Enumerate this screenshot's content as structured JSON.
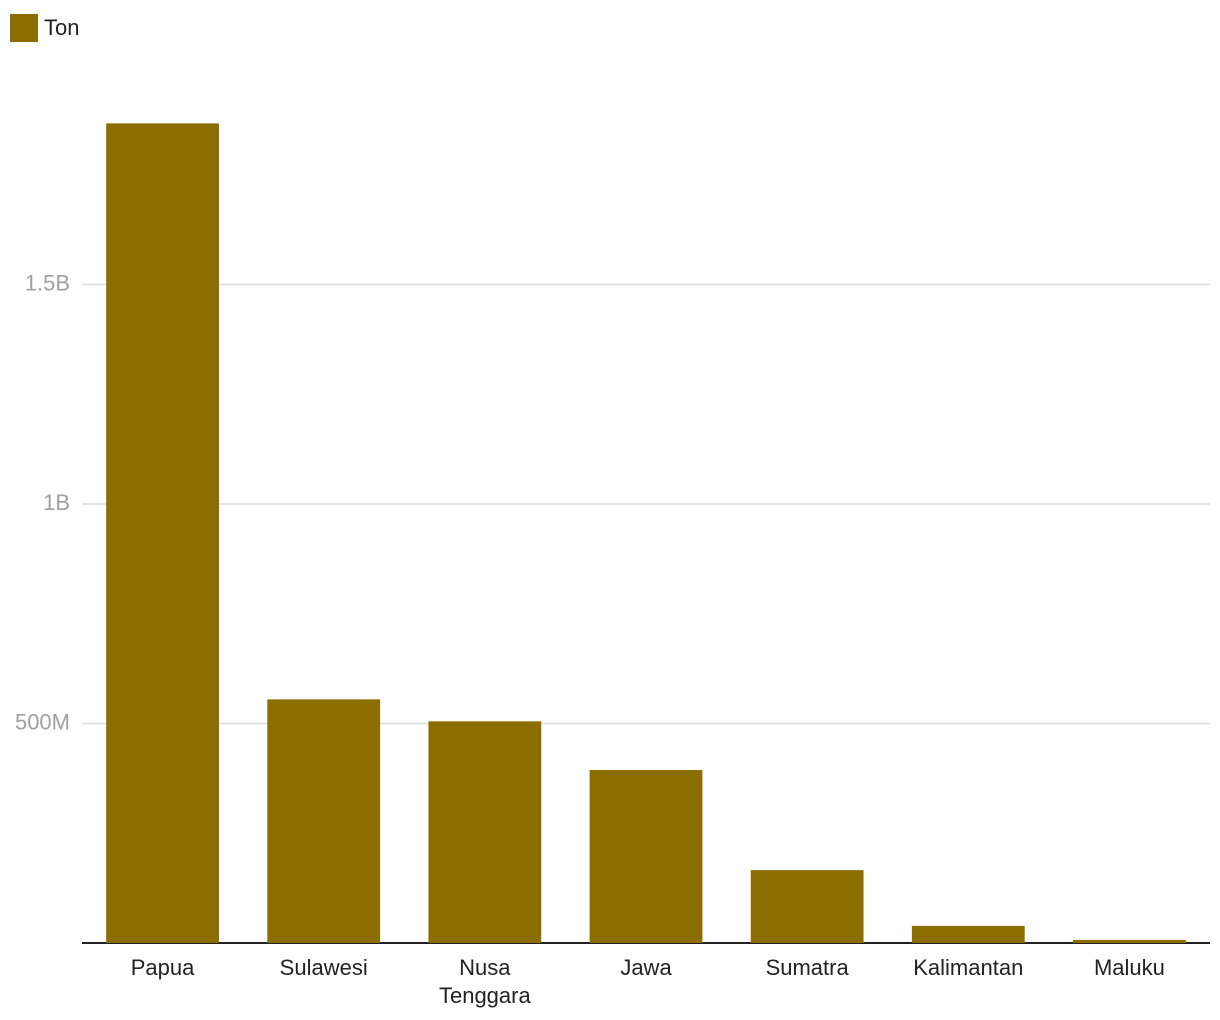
{
  "chart_data": {
    "type": "bar",
    "categories": [
      "Papua",
      "Sulawesi",
      "Nusa Tenggara",
      "Jawa",
      "Sumatra",
      "Kalimantan",
      "Maluku"
    ],
    "series": [
      {
        "name": "Ton",
        "color": "#8c6e00",
        "values": [
          1867000000,
          555000000,
          505000000,
          394000000,
          166000000,
          39000000,
          7000000
        ]
      }
    ],
    "ylim": [
      0,
      2000000000
    ],
    "yticks": [
      {
        "value": 500000000,
        "label": "500M"
      },
      {
        "value": 1000000000,
        "label": "1B"
      },
      {
        "value": 1500000000,
        "label": "1.5B"
      }
    ],
    "grid": true,
    "legend": "top-left"
  }
}
